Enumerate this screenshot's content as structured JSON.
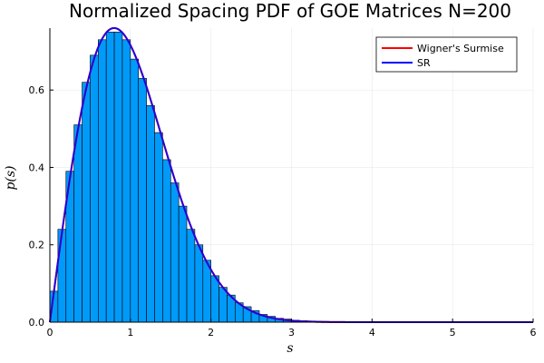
{
  "chart_data": {
    "type": "bar",
    "title": "Normalized Spacing PDF of GOE Matrices N=200",
    "xlabel": "s",
    "ylabel": "p(s)",
    "xlim": [
      0,
      6
    ],
    "ylim": [
      0,
      0.76
    ],
    "grid": true,
    "legend_position": "top-right",
    "x_ticks": [
      0,
      1,
      2,
      3,
      4,
      5,
      6
    ],
    "x_tick_labels": [
      "0",
      "1",
      "2",
      "3",
      "4",
      "5",
      "6"
    ],
    "y_ticks": [
      0,
      0.2,
      0.4,
      0.6
    ],
    "y_tick_labels": [
      "0.0",
      "0.2",
      "0.4",
      "0.6"
    ],
    "histogram": {
      "bin_width": 0.1,
      "bin_start": 0,
      "color": "#009AF9",
      "values": [
        0.08,
        0.24,
        0.39,
        0.51,
        0.62,
        0.69,
        0.73,
        0.75,
        0.75,
        0.73,
        0.68,
        0.63,
        0.56,
        0.49,
        0.42,
        0.36,
        0.3,
        0.24,
        0.2,
        0.16,
        0.12,
        0.09,
        0.07,
        0.05,
        0.04,
        0.03,
        0.02,
        0.015,
        0.01,
        0.008,
        0.005,
        0.004,
        0.003,
        0.002,
        0.0015,
        0.001,
        0.001,
        0.0005,
        0.0005,
        0.0003,
        0.0002,
        0.0002,
        0.0001,
        0.0001,
        0.0001,
        0.0001,
        0.0001,
        0.0001,
        0.0001,
        0.0001,
        0.0001,
        0.0001,
        0.0001,
        0.0001,
        0.0001,
        0.0001,
        0.0001,
        0.0001,
        0.0001,
        0.0001
      ]
    },
    "series": [
      {
        "name": "Wigner's Surmise",
        "color": "#FF0000",
        "function": "pi/2 * s * exp(-pi * s^2 / 4)"
      },
      {
        "name": "SR",
        "color": "#0000FF",
        "function": "pi/2 * s * exp(-pi * s^2 / 4)"
      }
    ]
  }
}
